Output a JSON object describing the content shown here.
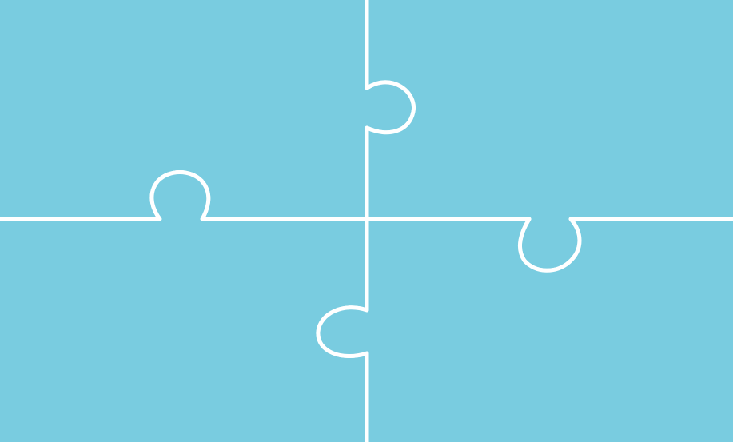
{
  "puzzle": {
    "rows": 2,
    "columns": 2,
    "piece_color": "#79cce0",
    "seam_color": "#ffffff",
    "pieces": [
      {
        "name": "top-left-piece",
        "tab": "top-right-piece"
      },
      {
        "name": "top-right-piece",
        "tab": "bottom-right-piece"
      },
      {
        "name": "bottom-left-piece",
        "tab": "top-left-piece"
      },
      {
        "name": "bottom-right-piece",
        "tab": "bottom-left-piece"
      }
    ]
  }
}
